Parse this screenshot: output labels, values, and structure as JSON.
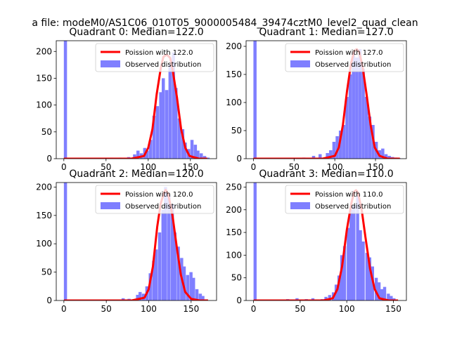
{
  "figure_title": "a file: modeM0/AS1C06_010T05_9000005484_39474cztM0_level2_quad_clean",
  "colors": {
    "hist": "#7f7fff",
    "poisson": "#ff0000"
  },
  "chart_data": [
    {
      "type": "bar",
      "title": "Quadrant 0: Median=122.0",
      "xlim": [
        -9,
        181
      ],
      "ylim": [
        0,
        220
      ],
      "xticks": [
        0,
        50,
        100,
        150
      ],
      "yticks": [
        0,
        50,
        100,
        150,
        200
      ],
      "legend_position": "top-right",
      "series": [
        {
          "name": "Observed distribution",
          "type": "hist",
          "bin_width": 3.75,
          "bins": [
            [
              0,
              220
            ],
            [
              55,
              2
            ],
            [
              65,
              2
            ],
            [
              75,
              3
            ],
            [
              82,
              8
            ],
            [
              86,
              15
            ],
            [
              90,
              10
            ],
            [
              94,
              20
            ],
            [
              97,
              15
            ],
            [
              101,
              35
            ],
            [
              105,
              80
            ],
            [
              109,
              98
            ],
            [
              113,
              124
            ],
            [
              116,
              150
            ],
            [
              120,
              128
            ],
            [
              124,
              175
            ],
            [
              128,
              198
            ],
            [
              131,
              132
            ],
            [
              135,
              75
            ],
            [
              139,
              55
            ],
            [
              142,
              30
            ],
            [
              146,
              18
            ],
            [
              150,
              35
            ],
            [
              154,
              26
            ],
            [
              157,
              15
            ],
            [
              161,
              10
            ],
            [
              165,
              5
            ],
            [
              169,
              2
            ]
          ]
        },
        {
          "name": "Poission with 122.0",
          "type": "line",
          "x": [
            0,
            80,
            95,
            100,
            105,
            110,
            115,
            118,
            122,
            126,
            129,
            134,
            139,
            144,
            149,
            160,
            170
          ],
          "y": [
            0,
            0,
            5,
            20,
            55,
            120,
            170,
            190,
            194,
            188,
            165,
            115,
            55,
            20,
            5,
            0,
            0
          ]
        }
      ]
    },
    {
      "type": "bar",
      "title": "Quadrant 1: Median=127.0",
      "xlim": [
        -9,
        188
      ],
      "ylim": [
        0,
        210
      ],
      "xticks": [
        0,
        50,
        100,
        150
      ],
      "yticks": [
        0,
        50,
        100,
        150,
        200
      ],
      "legend_position": "top-right",
      "series": [
        {
          "name": "Observed distribution",
          "type": "hist",
          "bin_width": 3.9,
          "bins": [
            [
              0,
              210
            ],
            [
              60,
              2
            ],
            [
              72,
              5
            ],
            [
              80,
              8
            ],
            [
              89,
              10
            ],
            [
              93,
              15
            ],
            [
              97,
              30
            ],
            [
              101,
              40
            ],
            [
              105,
              50
            ],
            [
              109,
              60
            ],
            [
              113,
              110
            ],
            [
              117,
              150
            ],
            [
              121,
              190
            ],
            [
              125,
              180
            ],
            [
              129,
              195
            ],
            [
              133,
              160
            ],
            [
              137,
              110
            ],
            [
              141,
              75
            ],
            [
              145,
              60
            ],
            [
              149,
              30
            ],
            [
              153,
              15
            ],
            [
              157,
              18
            ],
            [
              161,
              8
            ],
            [
              165,
              5
            ],
            [
              169,
              3
            ],
            [
              173,
              2
            ],
            [
              177,
              1
            ]
          ]
        },
        {
          "name": "Poission with 127.0",
          "type": "line",
          "x": [
            0,
            85,
            100,
            105,
            110,
            115,
            120,
            124,
            127,
            130,
            134,
            139,
            144,
            149,
            155,
            165,
            180
          ],
          "y": [
            0,
            0,
            5,
            20,
            60,
            120,
            170,
            192,
            195,
            190,
            165,
            115,
            60,
            20,
            5,
            0,
            0
          ]
        }
      ]
    },
    {
      "type": "bar",
      "title": "Quadrant 2: Median=120.0",
      "xlim": [
        -9,
        180
      ],
      "ylim": [
        0,
        208
      ],
      "xticks": [
        0,
        50,
        100,
        150
      ],
      "yticks": [
        0,
        50,
        100,
        150,
        200
      ],
      "legend_position": "top-right",
      "series": [
        {
          "name": "Observed distribution",
          "type": "hist",
          "bin_width": 3.7,
          "bins": [
            [
              0,
              208
            ],
            [
              68,
              4
            ],
            [
              75,
              3
            ],
            [
              85,
              10
            ],
            [
              88,
              15
            ],
            [
              92,
              12
            ],
            [
              96,
              25
            ],
            [
              100,
              48
            ],
            [
              104,
              70
            ],
            [
              107,
              90
            ],
            [
              111,
              120
            ],
            [
              115,
              160
            ],
            [
              118,
              200
            ],
            [
              122,
              185
            ],
            [
              126,
              170
            ],
            [
              129,
              120
            ],
            [
              133,
              95
            ],
            [
              137,
              75
            ],
            [
              140,
              60
            ],
            [
              144,
              45
            ],
            [
              148,
              50
            ],
            [
              151,
              40
            ],
            [
              155,
              20
            ],
            [
              159,
              12
            ],
            [
              162,
              8
            ],
            [
              166,
              2
            ]
          ]
        },
        {
          "name": "Poission with 120.0",
          "type": "line",
          "x": [
            0,
            80,
            95,
            100,
            105,
            110,
            114,
            118,
            120,
            123,
            128,
            133,
            138,
            143,
            150,
            160,
            170
          ],
          "y": [
            0,
            0,
            5,
            20,
            60,
            130,
            170,
            190,
            195,
            188,
            150,
            95,
            45,
            15,
            3,
            0,
            0
          ]
        }
      ]
    },
    {
      "type": "bar",
      "title": "Quadrant 3: Median=110.0",
      "xlim": [
        -8,
        164
      ],
      "ylim": [
        0,
        260
      ],
      "xticks": [
        0,
        50,
        100,
        150
      ],
      "yticks": [
        0,
        50,
        100,
        150,
        200,
        250
      ],
      "legend_position": "top-right",
      "series": [
        {
          "name": "Observed distribution",
          "type": "hist",
          "bin_width": 3.3,
          "bins": [
            [
              0,
              260
            ],
            [
              35,
              3
            ],
            [
              45,
              5
            ],
            [
              55,
              3
            ],
            [
              62,
              5
            ],
            [
              72,
              3
            ],
            [
              76,
              8
            ],
            [
              80,
              12
            ],
            [
              84,
              18
            ],
            [
              87,
              35
            ],
            [
              90,
              55
            ],
            [
              93,
              100
            ],
            [
              96,
              120
            ],
            [
              100,
              160
            ],
            [
              103,
              200
            ],
            [
              106,
              210
            ],
            [
              110,
              230
            ],
            [
              113,
              155
            ],
            [
              116,
              130
            ],
            [
              120,
              105
            ],
            [
              123,
              95
            ],
            [
              126,
              75
            ],
            [
              130,
              50
            ],
            [
              133,
              40
            ],
            [
              136,
              25
            ],
            [
              139,
              30
            ],
            [
              143,
              15
            ],
            [
              146,
              10
            ],
            [
              149,
              5
            ]
          ]
        },
        {
          "name": "Poission with 110.0",
          "type": "line",
          "x": [
            0,
            75,
            85,
            90,
            95,
            100,
            105,
            108,
            110,
            112,
            116,
            120,
            125,
            130,
            135,
            145,
            155
          ],
          "y": [
            0,
            0,
            5,
            25,
            75,
            155,
            215,
            240,
            243,
            238,
            200,
            140,
            70,
            25,
            5,
            0,
            0
          ]
        }
      ]
    }
  ]
}
